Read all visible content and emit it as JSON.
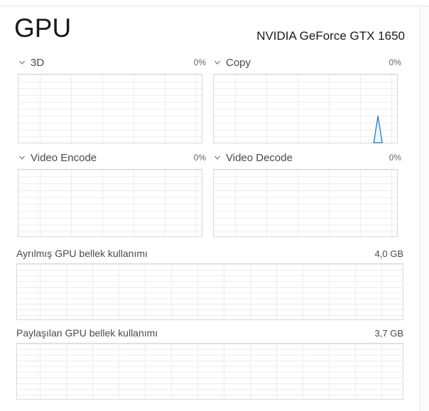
{
  "page": {
    "title": "GPU",
    "gpu_name": "NVIDIA GeForce GTX 1650"
  },
  "engine_charts": [
    {
      "label": "3D",
      "value": "0%"
    },
    {
      "label": "Copy",
      "value": "0%",
      "spike": {
        "points_percent": [
          [
            87.3,
            100
          ],
          [
            89.6,
            61
          ],
          [
            91.9,
            100
          ]
        ]
      }
    },
    {
      "label": "Video Encode",
      "value": "0%"
    },
    {
      "label": "Video Decode",
      "value": "0%"
    }
  ],
  "memory_charts": [
    {
      "label": "Ayrılmış GPU bellek kullanımı",
      "value": "4,0 GB"
    },
    {
      "label": "Paylaşılan GPU bellek kullanımı",
      "value": "3,7 GB"
    }
  ],
  "chart_data": [
    {
      "type": "area",
      "title": "3D",
      "unit": "%",
      "ylim": [
        0,
        100
      ],
      "values": [
        0
      ],
      "note": "flat at 0%"
    },
    {
      "type": "area",
      "title": "Copy",
      "unit": "%",
      "ylim": [
        0,
        100
      ],
      "values": [
        0,
        0,
        0,
        0,
        0,
        0,
        0,
        0,
        40,
        0
      ],
      "note": "single brief spike to ~40% near right edge"
    },
    {
      "type": "area",
      "title": "Video Encode",
      "unit": "%",
      "ylim": [
        0,
        100
      ],
      "values": [
        0
      ],
      "note": "flat at 0%"
    },
    {
      "type": "area",
      "title": "Video Decode",
      "unit": "%",
      "ylim": [
        0,
        100
      ],
      "values": [
        0
      ],
      "note": "flat at 0%"
    },
    {
      "type": "area",
      "title": "Ayrılmış GPU bellek kullanımı",
      "current": "4,0 GB",
      "values": [
        0
      ],
      "note": "flat at 0"
    },
    {
      "type": "area",
      "title": "Paylaşılan GPU bellek kullanımı",
      "current": "3,7 GB",
      "values": [
        0
      ],
      "note": "flat at 0"
    }
  ],
  "colors": {
    "accent_blue": "#1f7dbd",
    "spike_fill": "#eef5fb",
    "grid_line": "#ececec",
    "grid_border": "#d8d8d8",
    "label_gray": "#4a4a4a"
  }
}
